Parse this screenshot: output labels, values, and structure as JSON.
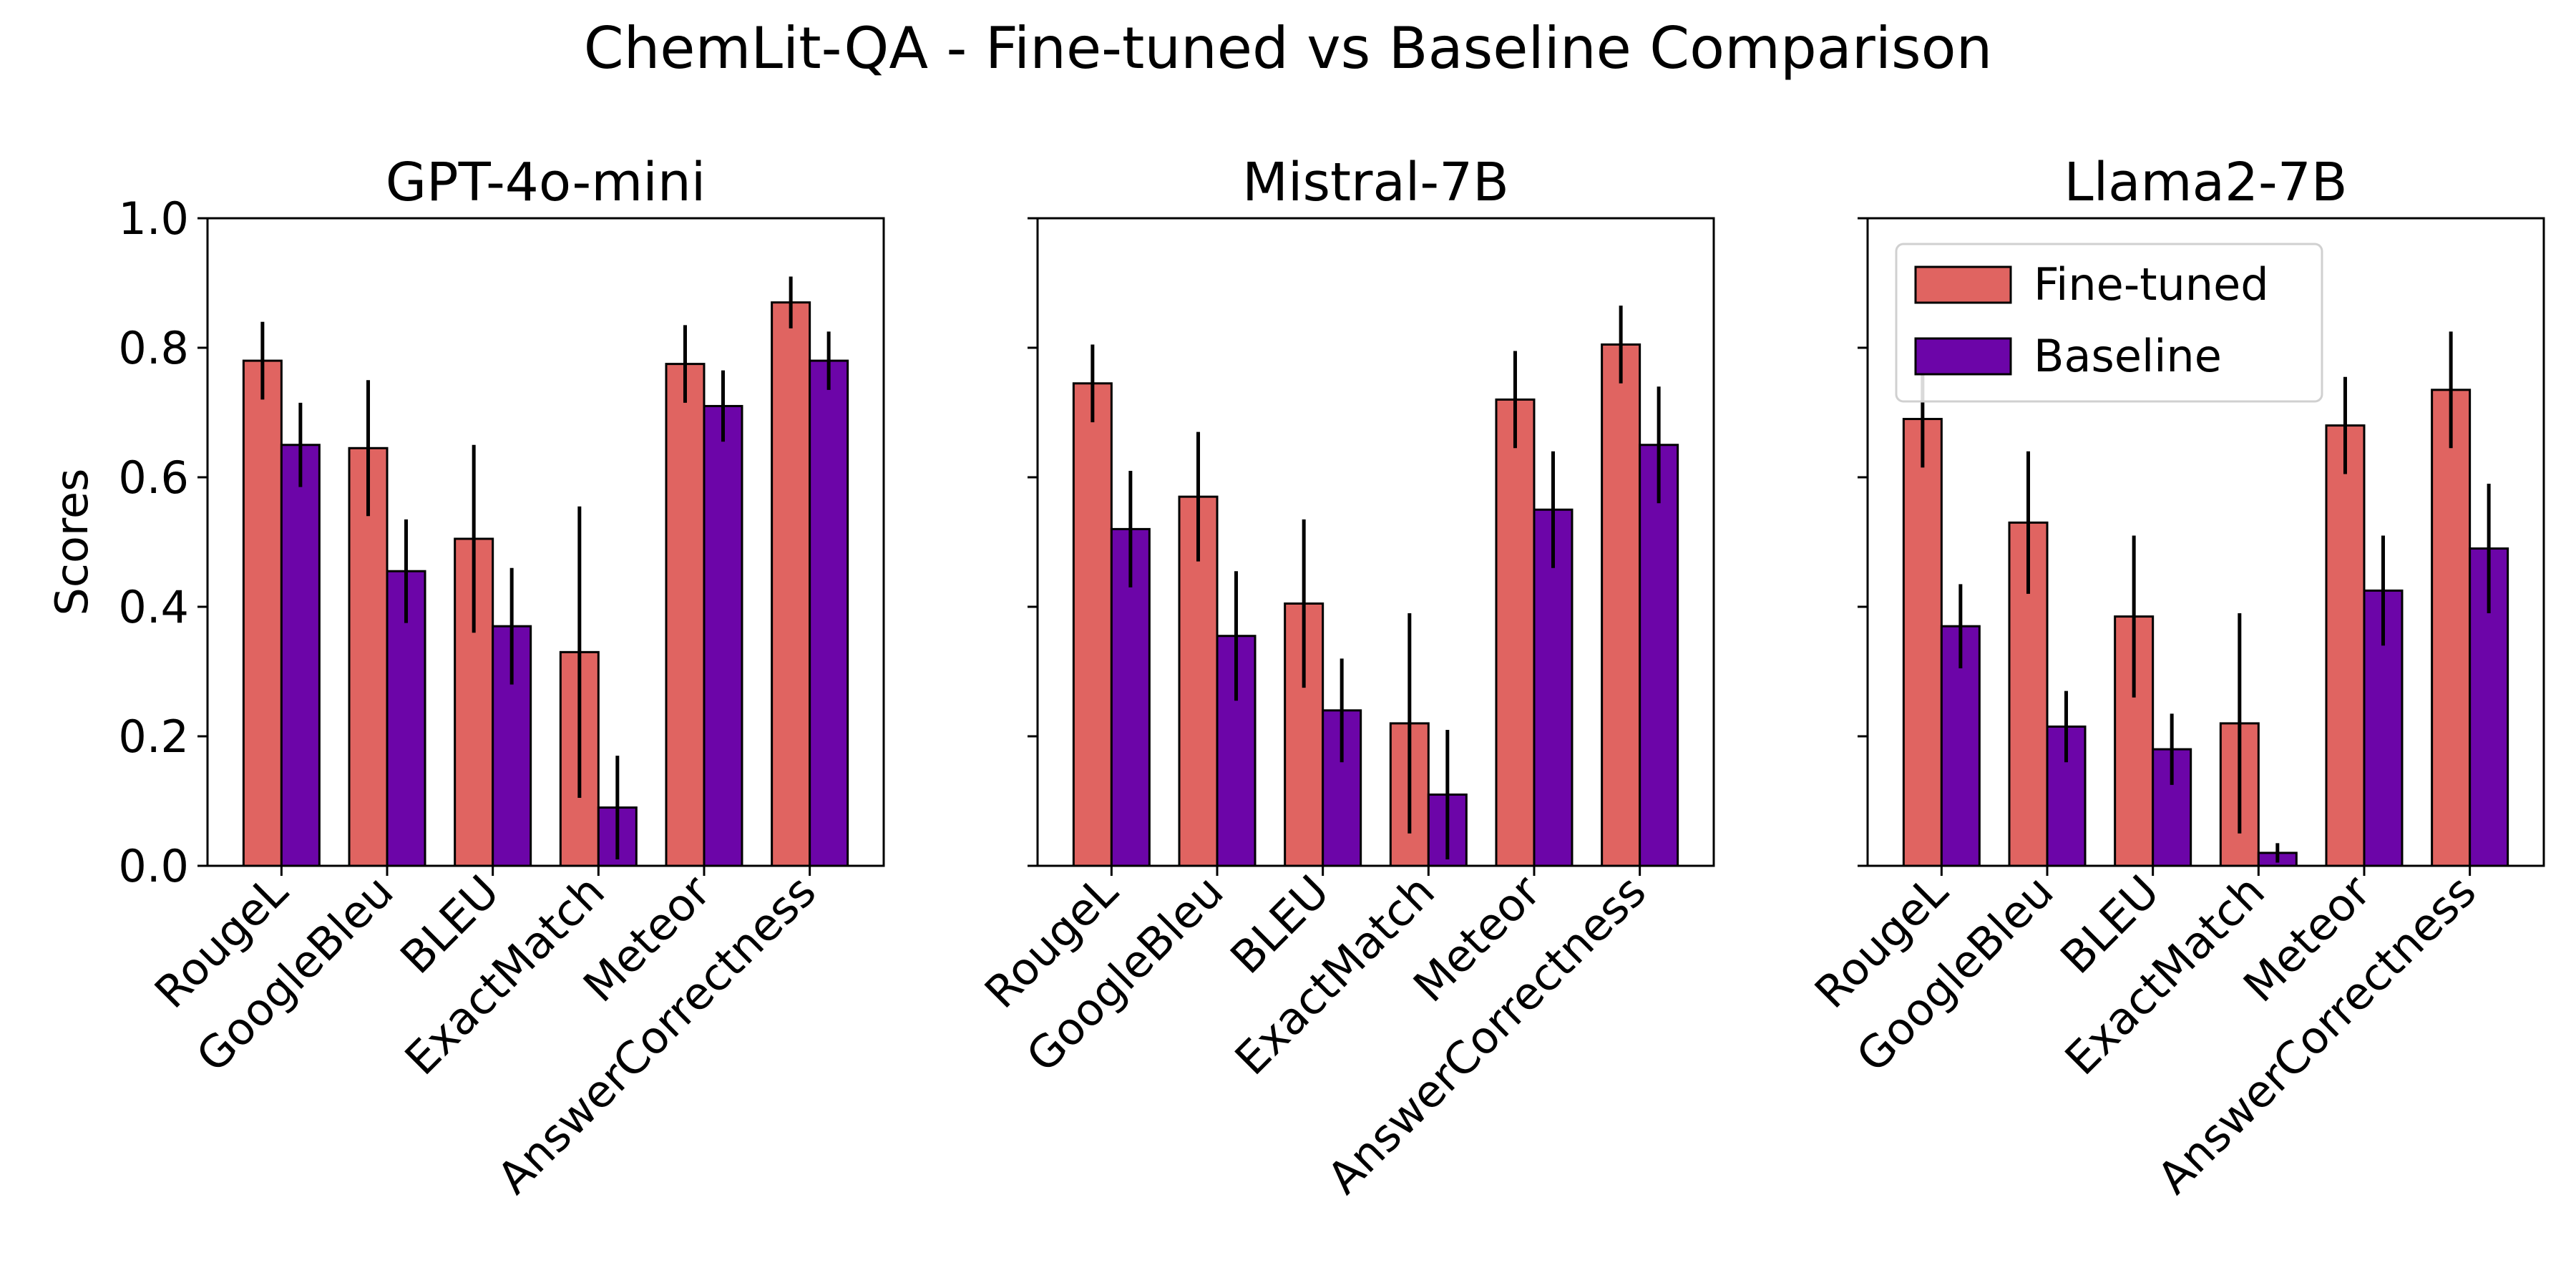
{
  "figure_title": "ChemLit-QA - Fine-tuned vs Baseline Comparison",
  "colors": {
    "fine_tuned": "#e06461",
    "baseline": "#6c05a8"
  },
  "chart_data": [
    {
      "type": "bar",
      "title": "GPT-4o-mini",
      "xlabel": "",
      "ylabel": "Scores",
      "ylim": [
        0,
        1.0
      ],
      "yticks": [
        "0.0",
        "0.2",
        "0.4",
        "0.6",
        "0.8",
        "1.0"
      ],
      "grid": false,
      "legend": null,
      "categories": [
        "RougeL",
        "GoogleBleu",
        "BLEU",
        "ExactMatch",
        "Meteor",
        "AnswerCorrectness"
      ],
      "series": [
        {
          "name": "Fine-tuned",
          "values": [
            0.78,
            0.645,
            0.505,
            0.33,
            0.775,
            0.87
          ],
          "errors": [
            0.06,
            0.105,
            0.145,
            0.225,
            0.06,
            0.04
          ]
        },
        {
          "name": "Baseline",
          "values": [
            0.65,
            0.455,
            0.37,
            0.09,
            0.71,
            0.78
          ],
          "errors": [
            0.065,
            0.08,
            0.09,
            0.08,
            0.055,
            0.045
          ]
        }
      ]
    },
    {
      "type": "bar",
      "title": "Mistral-7B",
      "xlabel": "",
      "ylabel": "",
      "ylim": [
        0,
        1.0
      ],
      "yticks": [],
      "grid": false,
      "legend": null,
      "categories": [
        "RougeL",
        "GoogleBleu",
        "BLEU",
        "ExactMatch",
        "Meteor",
        "AnswerCorrectness"
      ],
      "series": [
        {
          "name": "Fine-tuned",
          "values": [
            0.745,
            0.57,
            0.405,
            0.22,
            0.72,
            0.805
          ],
          "errors": [
            0.06,
            0.1,
            0.13,
            0.17,
            0.075,
            0.06
          ]
        },
        {
          "name": "Baseline",
          "values": [
            0.52,
            0.355,
            0.24,
            0.11,
            0.55,
            0.65
          ],
          "errors": [
            0.09,
            0.1,
            0.08,
            0.1,
            0.09,
            0.09
          ]
        }
      ]
    },
    {
      "type": "bar",
      "title": "Llama2-7B",
      "xlabel": "",
      "ylabel": "",
      "ylim": [
        0,
        1.0
      ],
      "yticks": [],
      "grid": false,
      "legend": "upper left",
      "categories": [
        "RougeL",
        "GoogleBleu",
        "BLEU",
        "ExactMatch",
        "Meteor",
        "AnswerCorrectness"
      ],
      "series": [
        {
          "name": "Fine-tuned",
          "values": [
            0.69,
            0.53,
            0.385,
            0.22,
            0.68,
            0.735
          ],
          "errors": [
            0.075,
            0.11,
            0.125,
            0.17,
            0.075,
            0.09
          ]
        },
        {
          "name": "Baseline",
          "values": [
            0.37,
            0.215,
            0.18,
            0.02,
            0.425,
            0.49
          ],
          "errors": [
            0.065,
            0.055,
            0.055,
            0.015,
            0.085,
            0.1
          ]
        }
      ]
    }
  ]
}
